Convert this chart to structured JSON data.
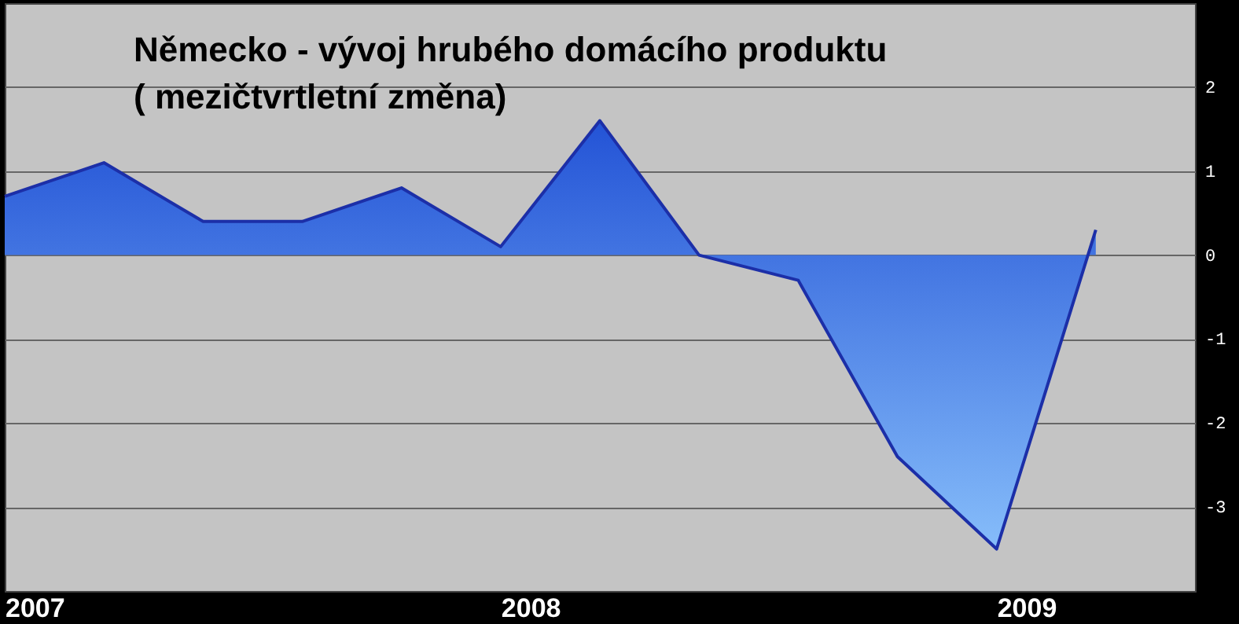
{
  "chart_data": {
    "type": "area",
    "title": "Německo - vývoj hrubého domácího produktu",
    "subtitle": "( mezičtvrtletní změna)",
    "categories": [
      "2007",
      null,
      null,
      null,
      null,
      "2008",
      null,
      null,
      null,
      null,
      "2009",
      null,
      null
    ],
    "series": [
      {
        "color": "#1c2fa8",
        "values": [
          0.7,
          1.1,
          0.4,
          0.4,
          0.8,
          0.1,
          1.6,
          0.0,
          -0.3,
          -2.4,
          -3.5,
          0.3,
          null
        ]
      }
    ],
    "ylim": [
      -4,
      3
    ],
    "yticks": [
      -3,
      -2,
      -1,
      0,
      1,
      2
    ],
    "grid": "y"
  }
}
